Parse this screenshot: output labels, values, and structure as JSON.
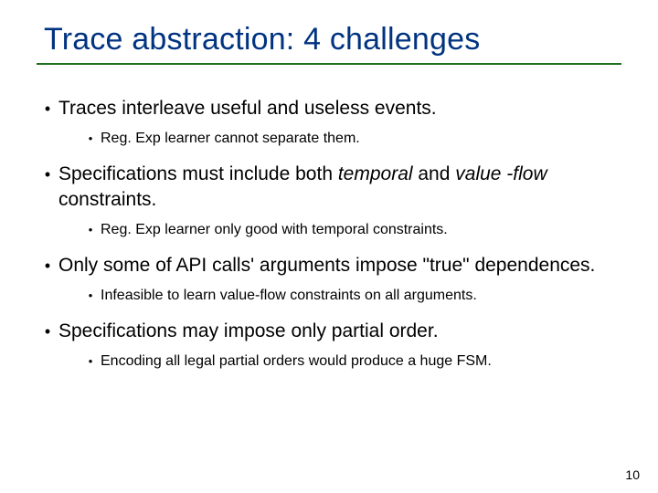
{
  "slide": {
    "title": "Trace abstraction: 4 challenges",
    "bullets": [
      {
        "main_pre": "Traces interleave useful and useless events.",
        "main_italic": "",
        "main_post": "",
        "sub": "Reg. Exp learner cannot separate them."
      },
      {
        "main_pre": "Specifications must include both ",
        "main_italic": "temporal",
        "main_mid": " and ",
        "main_italic2": "value -flow",
        "main_post": " constraints.",
        "sub": "Reg. Exp learner only good with temporal constraints."
      },
      {
        "main_pre": "Only some of API calls' arguments impose \"true\" dependences.",
        "main_italic": "",
        "main_post": "",
        "sub": "Infeasible to learn value-flow constraints on all arguments."
      },
      {
        "main_pre": "Specifications may impose only partial order.",
        "main_italic": "",
        "main_post": "",
        "sub": "Encoding all legal partial orders would produce a huge FSM."
      }
    ],
    "page_number": "10"
  },
  "style": {
    "title_color": "#003380",
    "underline_color": "#1f6f1f",
    "background_color": "#ffffff",
    "text_color": "#000000",
    "title_fontsize": 34,
    "l1_fontsize": 21,
    "l2_fontsize": 16,
    "pagenum_fontsize": 14
  }
}
